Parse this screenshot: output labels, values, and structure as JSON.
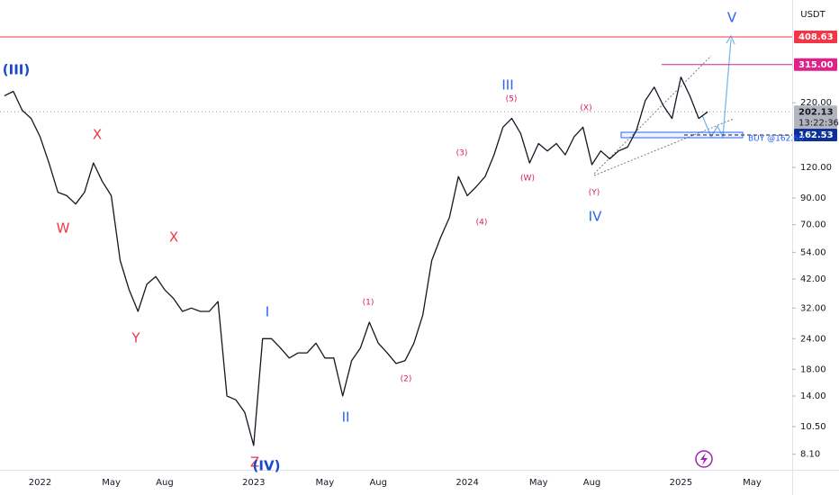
{
  "chart_data": {
    "type": "line",
    "currency": "USDT",
    "log_scale": true,
    "color": "#131722",
    "categories": [
      null,
      null,
      null,
      null,
      "2022",
      null,
      null,
      null,
      null,
      null,
      null,
      null,
      "May",
      null,
      null,
      null,
      null,
      null,
      "Aug",
      null,
      null,
      null,
      null,
      null,
      null,
      null,
      null,
      null,
      "2023",
      null,
      null,
      null,
      null,
      null,
      null,
      null,
      "May",
      null,
      null,
      null,
      null,
      null,
      "Aug",
      null,
      null,
      null,
      null,
      null,
      null,
      null,
      null,
      null,
      "2024",
      null,
      null,
      null,
      null,
      null,
      null,
      null,
      "May",
      null,
      null,
      null,
      null,
      null,
      "Aug",
      null,
      null,
      null,
      null,
      null,
      null,
      null,
      null,
      null,
      "2025",
      null,
      null,
      null,
      null,
      null,
      null,
      null,
      "May",
      null,
      null,
      null,
      null
    ],
    "values": [
      235,
      245,
      205,
      190,
      160,
      125,
      95,
      92,
      85,
      95,
      125,
      105,
      92,
      50,
      38,
      31,
      40,
      43,
      38,
      35,
      31,
      32,
      31,
      31,
      34,
      14,
      13.5,
      12,
      8.8,
      24,
      24,
      22,
      20,
      21,
      21,
      23,
      20,
      20,
      14,
      19.5,
      22,
      28,
      23,
      21,
      19,
      19.5,
      23,
      30,
      50,
      62,
      75,
      110,
      92,
      100,
      110,
      135,
      175,
      190,
      165,
      125,
      150,
      140,
      150,
      135,
      160,
      175,
      123,
      140,
      130,
      140,
      145,
      170,
      225,
      255,
      215,
      190,
      280,
      235,
      190,
      202.13,
      null,
      null,
      null,
      null,
      null,
      null,
      null,
      null,
      null
    ],
    "ylim": [
      7,
      578
    ],
    "yticks": [
      {
        "value": 8.1,
        "label": "8.10"
      },
      {
        "value": 10.5,
        "label": "10.50"
      },
      {
        "value": 14,
        "label": "14.00"
      },
      {
        "value": 18,
        "label": "18.00"
      },
      {
        "value": 24,
        "label": "24.00"
      },
      {
        "value": 32,
        "label": "32.00"
      },
      {
        "value": 42,
        "label": "42.00"
      },
      {
        "value": 54,
        "label": "54.00"
      },
      {
        "value": 70,
        "label": "70.00"
      },
      {
        "value": 90,
        "label": "90.00"
      },
      {
        "value": 120,
        "label": "120.00"
      },
      {
        "value": 220,
        "label": "220.00"
      }
    ],
    "price_levels": [
      {
        "value": 408.63,
        "color": "#f23645"
      },
      {
        "value": 315,
        "label": "315.00",
        "color": "#e0218a"
      },
      {
        "value": 202.13,
        "color": "#b2b5be",
        "countdown": "13:22:36"
      },
      {
        "value": 162.53,
        "color": "#0c3299"
      }
    ],
    "buy_order": {
      "value": 162.6,
      "label": "BUY @162.60",
      "color": "#2962ff"
    },
    "annotations": [
      {
        "text": "(III)",
        "color": "#1848cc"
      },
      {
        "text": "W",
        "color": "#f23645"
      },
      {
        "text": "X",
        "color": "#f23645"
      },
      {
        "text": "X",
        "color": "#f23645"
      },
      {
        "text": "Y",
        "color": "#f23645"
      },
      {
        "text": "Z",
        "color": "#f23645"
      },
      {
        "text": "(IV)",
        "color": "#1848cc"
      },
      {
        "text": "I",
        "color": "#2962ff"
      },
      {
        "text": "II",
        "color": "#2962ff"
      },
      {
        "text": "(1)",
        "color": "#d81b60"
      },
      {
        "text": "(2)",
        "color": "#d81b60"
      },
      {
        "text": "(3)",
        "color": "#d81b60"
      },
      {
        "text": "(4)",
        "color": "#d81b60"
      },
      {
        "text": "(5)",
        "color": "#d81b60"
      },
      {
        "text": "III",
        "color": "#2962ff"
      },
      {
        "text": "(W)",
        "color": "#d81b60"
      },
      {
        "text": "(X)",
        "color": "#d81b60"
      },
      {
        "text": "(Y)",
        "color": "#d81b60"
      },
      {
        "text": "IV",
        "color": "#2962ff"
      },
      {
        "text": "V",
        "color": "#2962ff"
      }
    ]
  }
}
